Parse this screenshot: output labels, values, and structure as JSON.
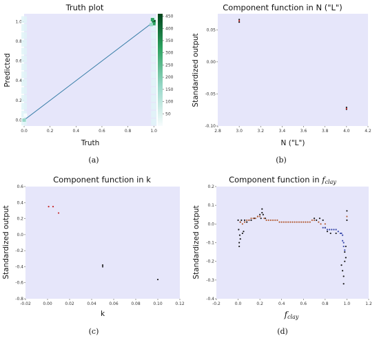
{
  "chart_data": [
    {
      "id": "a",
      "type": "heatmap",
      "caption": "(a)",
      "title": "Truth plot",
      "xlabel": "Truth",
      "ylabel": "Predicted",
      "xlim": [
        0,
        1.02
      ],
      "ylim": [
        -0.06,
        1.08
      ],
      "xticks": [
        0.0,
        0.2,
        0.4,
        0.6,
        0.8,
        1.0
      ],
      "yticks": [
        0.0,
        0.2,
        0.4,
        0.6,
        0.8,
        1.0
      ],
      "line": {
        "x": [
          0,
          1
        ],
        "y": [
          0,
          1
        ],
        "color": "#3a7fa8"
      },
      "points": [
        {
          "x": 1.0,
          "y": 1.0,
          "count": 450
        },
        {
          "x": 0.99,
          "y": 1.02,
          "count": 300
        },
        {
          "x": 1.0,
          "y": 0.98,
          "count": 200
        },
        {
          "x": 0.98,
          "y": 0.97,
          "count": 120
        },
        {
          "x": 0.0,
          "y": 0.0,
          "count": 60
        },
        {
          "x": 0.01,
          "y": 0.05,
          "count": 20
        }
      ],
      "colorbar": {
        "min": 0,
        "max": 460,
        "ticks": [
          50,
          100,
          150,
          200,
          250,
          300,
          350,
          400,
          450
        ],
        "colors": [
          "#f7fcfd",
          "#99d8c9",
          "#2ca25f",
          "#00441b"
        ]
      }
    },
    {
      "id": "b",
      "type": "scatter",
      "caption": "(b)",
      "title": "Component function in N (\"L\")",
      "xlabel": "N (\"L\")",
      "ylabel": "Standardized output",
      "xlim": [
        2.8,
        4.2
      ],
      "ylim": [
        -0.1,
        0.075
      ],
      "xticks": [
        2.8,
        3.0,
        3.2,
        3.4,
        3.6,
        3.8,
        4.0,
        4.2
      ],
      "yticks": [
        -0.1,
        -0.05,
        0.0,
        0.05
      ],
      "series": [
        {
          "color": "#1a1a1a",
          "x": [
            3.0,
            3.0,
            4.0,
            4.0
          ],
          "y": [
            0.066,
            0.062,
            -0.071,
            -0.074
          ]
        },
        {
          "color": "#c62828",
          "x": [
            3.0,
            4.0
          ],
          "y": [
            0.064,
            -0.073
          ]
        }
      ]
    },
    {
      "id": "c",
      "type": "scatter",
      "caption": "(c)",
      "title": "Component function in k",
      "xlabel": "k",
      "ylabel": "Standardized output",
      "xlim": [
        -0.02,
        0.12
      ],
      "ylim": [
        -0.8,
        0.6
      ],
      "xticks": [
        -0.02,
        0.0,
        0.02,
        0.04,
        0.06,
        0.08,
        0.1,
        0.12
      ],
      "yticks": [
        -0.8,
        -0.6,
        -0.4,
        -0.2,
        0.0,
        0.2,
        0.4,
        0.6
      ],
      "series": [
        {
          "color": "#c62828",
          "x": [
            0.001,
            0.005,
            0.01
          ],
          "y": [
            0.35,
            0.35,
            0.27
          ]
        },
        {
          "color": "#1a1a1a",
          "x": [
            0.05,
            0.05,
            0.1
          ],
          "y": [
            -0.38,
            -0.4,
            -0.56
          ]
        }
      ]
    },
    {
      "id": "d",
      "type": "scatter",
      "caption": "(d)",
      "title": "Component function in ",
      "title_math": "f",
      "title_sub": "clay",
      "xlabel_math": "f",
      "xlabel_sub": "clay",
      "ylabel": "Standardized output",
      "xlim": [
        -0.2,
        1.2
      ],
      "ylim": [
        -0.4,
        0.2
      ],
      "xticks": [
        -0.2,
        0.0,
        0.2,
        0.4,
        0.6,
        0.8,
        1.0,
        1.2
      ],
      "yticks": [
        -0.4,
        -0.3,
        -0.2,
        -0.1,
        0.0,
        0.1,
        0.2
      ],
      "series": [
        {
          "color": "#1a1a1a",
          "x": [
            0.0,
            0.005,
            0.01,
            0.01,
            0.015,
            0.02,
            0.02,
            0.03,
            0.04,
            0.05,
            0.06,
            0.08,
            0.1,
            0.12,
            0.15,
            0.18,
            0.2,
            0.21,
            0.22,
            0.22,
            0.23,
            0.25,
            0.7,
            0.72,
            0.75,
            0.78,
            0.8,
            0.82,
            0.85,
            0.9,
            0.95,
            0.96,
            0.97,
            0.97,
            0.98,
            0.98,
            0.99,
            0.99,
            1.0,
            1.0
          ],
          "y": [
            0.02,
            -0.03,
            -0.12,
            -0.1,
            -0.06,
            -0.08,
            0.01,
            0.02,
            -0.05,
            -0.04,
            0.02,
            0.01,
            0.02,
            0.02,
            0.03,
            0.04,
            0.05,
            0.03,
            0.08,
            0.06,
            0.05,
            0.03,
            0.03,
            0.02,
            0.03,
            0.02,
            -0.02,
            -0.04,
            -0.05,
            -0.05,
            -0.22,
            -0.25,
            -0.28,
            -0.32,
            -0.2,
            -0.15,
            -0.18,
            -0.12,
            0.02,
            0.07
          ]
        },
        {
          "color": "#b5603a",
          "x": [
            0.02,
            0.04,
            0.06,
            0.08,
            0.1,
            0.12,
            0.14,
            0.16,
            0.18,
            0.2,
            0.24,
            0.26,
            0.28,
            0.3,
            0.32,
            0.34,
            0.36,
            0.38,
            0.4,
            0.42,
            0.44,
            0.46,
            0.48,
            0.5,
            0.52,
            0.54,
            0.56,
            0.58,
            0.6,
            0.62,
            0.64,
            0.66,
            0.68,
            0.7,
            0.74,
            0.76,
            0.8,
            1.0
          ],
          "y": [
            0.01,
            0.0,
            0.01,
            0.02,
            0.02,
            0.03,
            0.03,
            0.03,
            0.04,
            0.04,
            0.03,
            0.02,
            0.02,
            0.02,
            0.02,
            0.02,
            0.02,
            0.01,
            0.01,
            0.01,
            0.01,
            0.01,
            0.01,
            0.01,
            0.01,
            0.01,
            0.01,
            0.01,
            0.01,
            0.01,
            0.01,
            0.01,
            0.02,
            0.02,
            0.01,
            0.0,
            0.0,
            0.04
          ]
        },
        {
          "color": "#3949ab",
          "x": [
            0.78,
            0.8,
            0.82,
            0.84,
            0.86,
            0.88,
            0.9,
            0.92,
            0.94,
            0.95,
            0.96,
            0.96,
            0.97,
            0.97,
            0.98
          ],
          "y": [
            -0.02,
            -0.02,
            -0.03,
            -0.03,
            -0.03,
            -0.03,
            -0.03,
            -0.04,
            -0.05,
            -0.05,
            -0.06,
            -0.09,
            -0.1,
            -0.12,
            -0.14
          ]
        }
      ]
    }
  ]
}
